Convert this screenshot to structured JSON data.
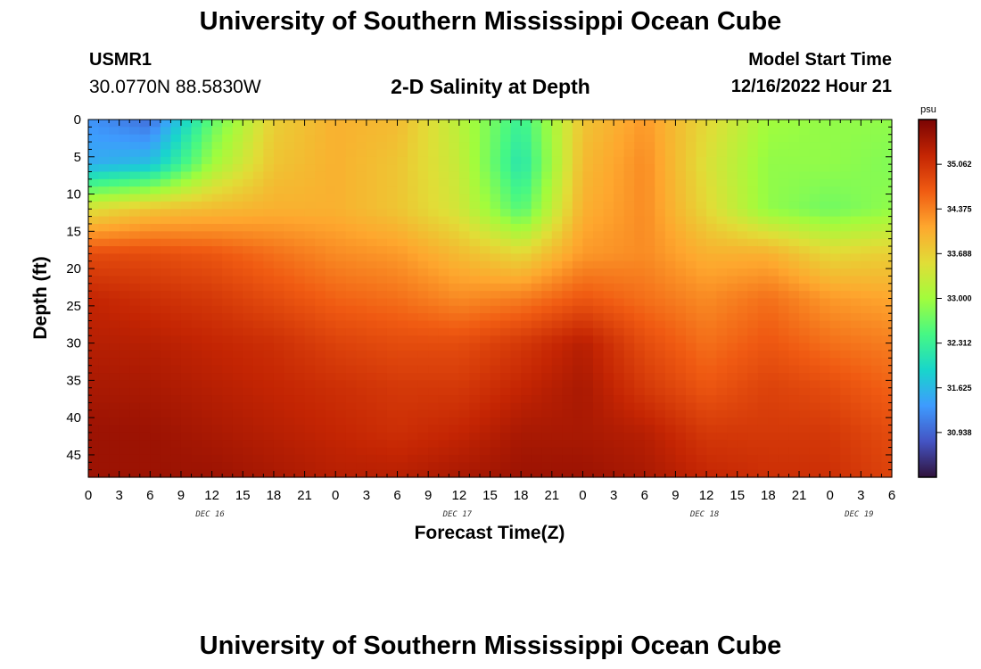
{
  "header": {
    "title": "University of Southern Mississippi Ocean Cube",
    "station": "USMR1",
    "coords": "30.0770N  88.5830W",
    "subtitle": "2-D Salinity at Depth",
    "start_label": "Model Start Time",
    "start_value": "12/16/2022 Hour 21"
  },
  "footer": {
    "title": "University of Southern Mississippi Ocean Cube"
  },
  "chart_data": {
    "type": "heatmap",
    "title": "2-D Salinity at Depth",
    "xlabel": "Forecast Time(Z)",
    "ylabel": "Depth (ft)",
    "x_hours": [
      0,
      78
    ],
    "y_range_ft": [
      0,
      48
    ],
    "x_tick_labels": [
      "0",
      "3",
      "6",
      "9",
      "12",
      "15",
      "18",
      "21",
      "0",
      "3",
      "6",
      "9",
      "12",
      "15",
      "18",
      "21",
      "0",
      "3",
      "6",
      "9",
      "12",
      "15",
      "18",
      "21",
      "0",
      "3",
      "6"
    ],
    "y_ticks": [
      0,
      5,
      10,
      15,
      20,
      25,
      30,
      35,
      40,
      45
    ],
    "day_labels": [
      {
        "label": "DEC 16",
        "hour": 12
      },
      {
        "label": "DEC 17",
        "hour": 36
      },
      {
        "label": "DEC 18",
        "hour": 60
      },
      {
        "label": "DEC 19",
        "hour": 75
      }
    ],
    "colorbar": {
      "unit": "psu",
      "min": 30.25,
      "max": 35.75,
      "ticks": [
        "35.062",
        "34.375",
        "33.688",
        "33.000",
        "32.312",
        "31.625",
        "30.938"
      ]
    },
    "depths_ft": [
      0,
      6,
      12,
      18,
      24,
      30,
      36,
      42,
      48
    ],
    "times_h": [
      0,
      6,
      12,
      18,
      24,
      30,
      36,
      42,
      48,
      54,
      60,
      66,
      72,
      78
    ],
    "salinity_psu": [
      [
        31.3,
        31.0,
        32.6,
        33.7,
        34.0,
        33.9,
        33.2,
        32.3,
        33.8,
        34.2,
        33.6,
        33.0,
        32.9,
        32.9
      ],
      [
        31.5,
        31.7,
        33.0,
        33.8,
        34.0,
        33.8,
        33.3,
        32.1,
        33.9,
        34.3,
        33.5,
        32.9,
        32.9,
        32.8
      ],
      [
        33.5,
        33.8,
        33.9,
        34.0,
        34.0,
        33.8,
        33.4,
        32.5,
        34.0,
        34.3,
        33.6,
        32.9,
        32.7,
        32.9
      ],
      [
        34.8,
        34.8,
        34.7,
        34.5,
        34.3,
        34.2,
        33.9,
        33.6,
        34.2,
        34.3,
        34.0,
        34.0,
        33.6,
        33.7
      ],
      [
        35.2,
        35.1,
        35.0,
        34.8,
        34.6,
        34.5,
        34.3,
        34.4,
        34.7,
        34.5,
        34.3,
        34.5,
        34.2,
        34.1
      ],
      [
        35.3,
        35.3,
        35.2,
        35.1,
        34.9,
        34.8,
        34.8,
        35.0,
        35.3,
        34.8,
        34.5,
        34.7,
        34.5,
        34.4
      ],
      [
        35.4,
        35.4,
        35.3,
        35.2,
        35.1,
        35.0,
        35.0,
        35.2,
        35.4,
        35.0,
        34.7,
        34.9,
        34.8,
        34.6
      ],
      [
        35.5,
        35.5,
        35.4,
        35.3,
        35.2,
        35.1,
        35.2,
        35.4,
        35.4,
        35.3,
        35.0,
        35.0,
        35.0,
        34.8
      ],
      [
        35.5,
        35.5,
        35.5,
        35.4,
        35.3,
        35.3,
        35.4,
        35.5,
        35.5,
        35.4,
        35.2,
        35.1,
        35.1,
        34.9
      ]
    ]
  }
}
